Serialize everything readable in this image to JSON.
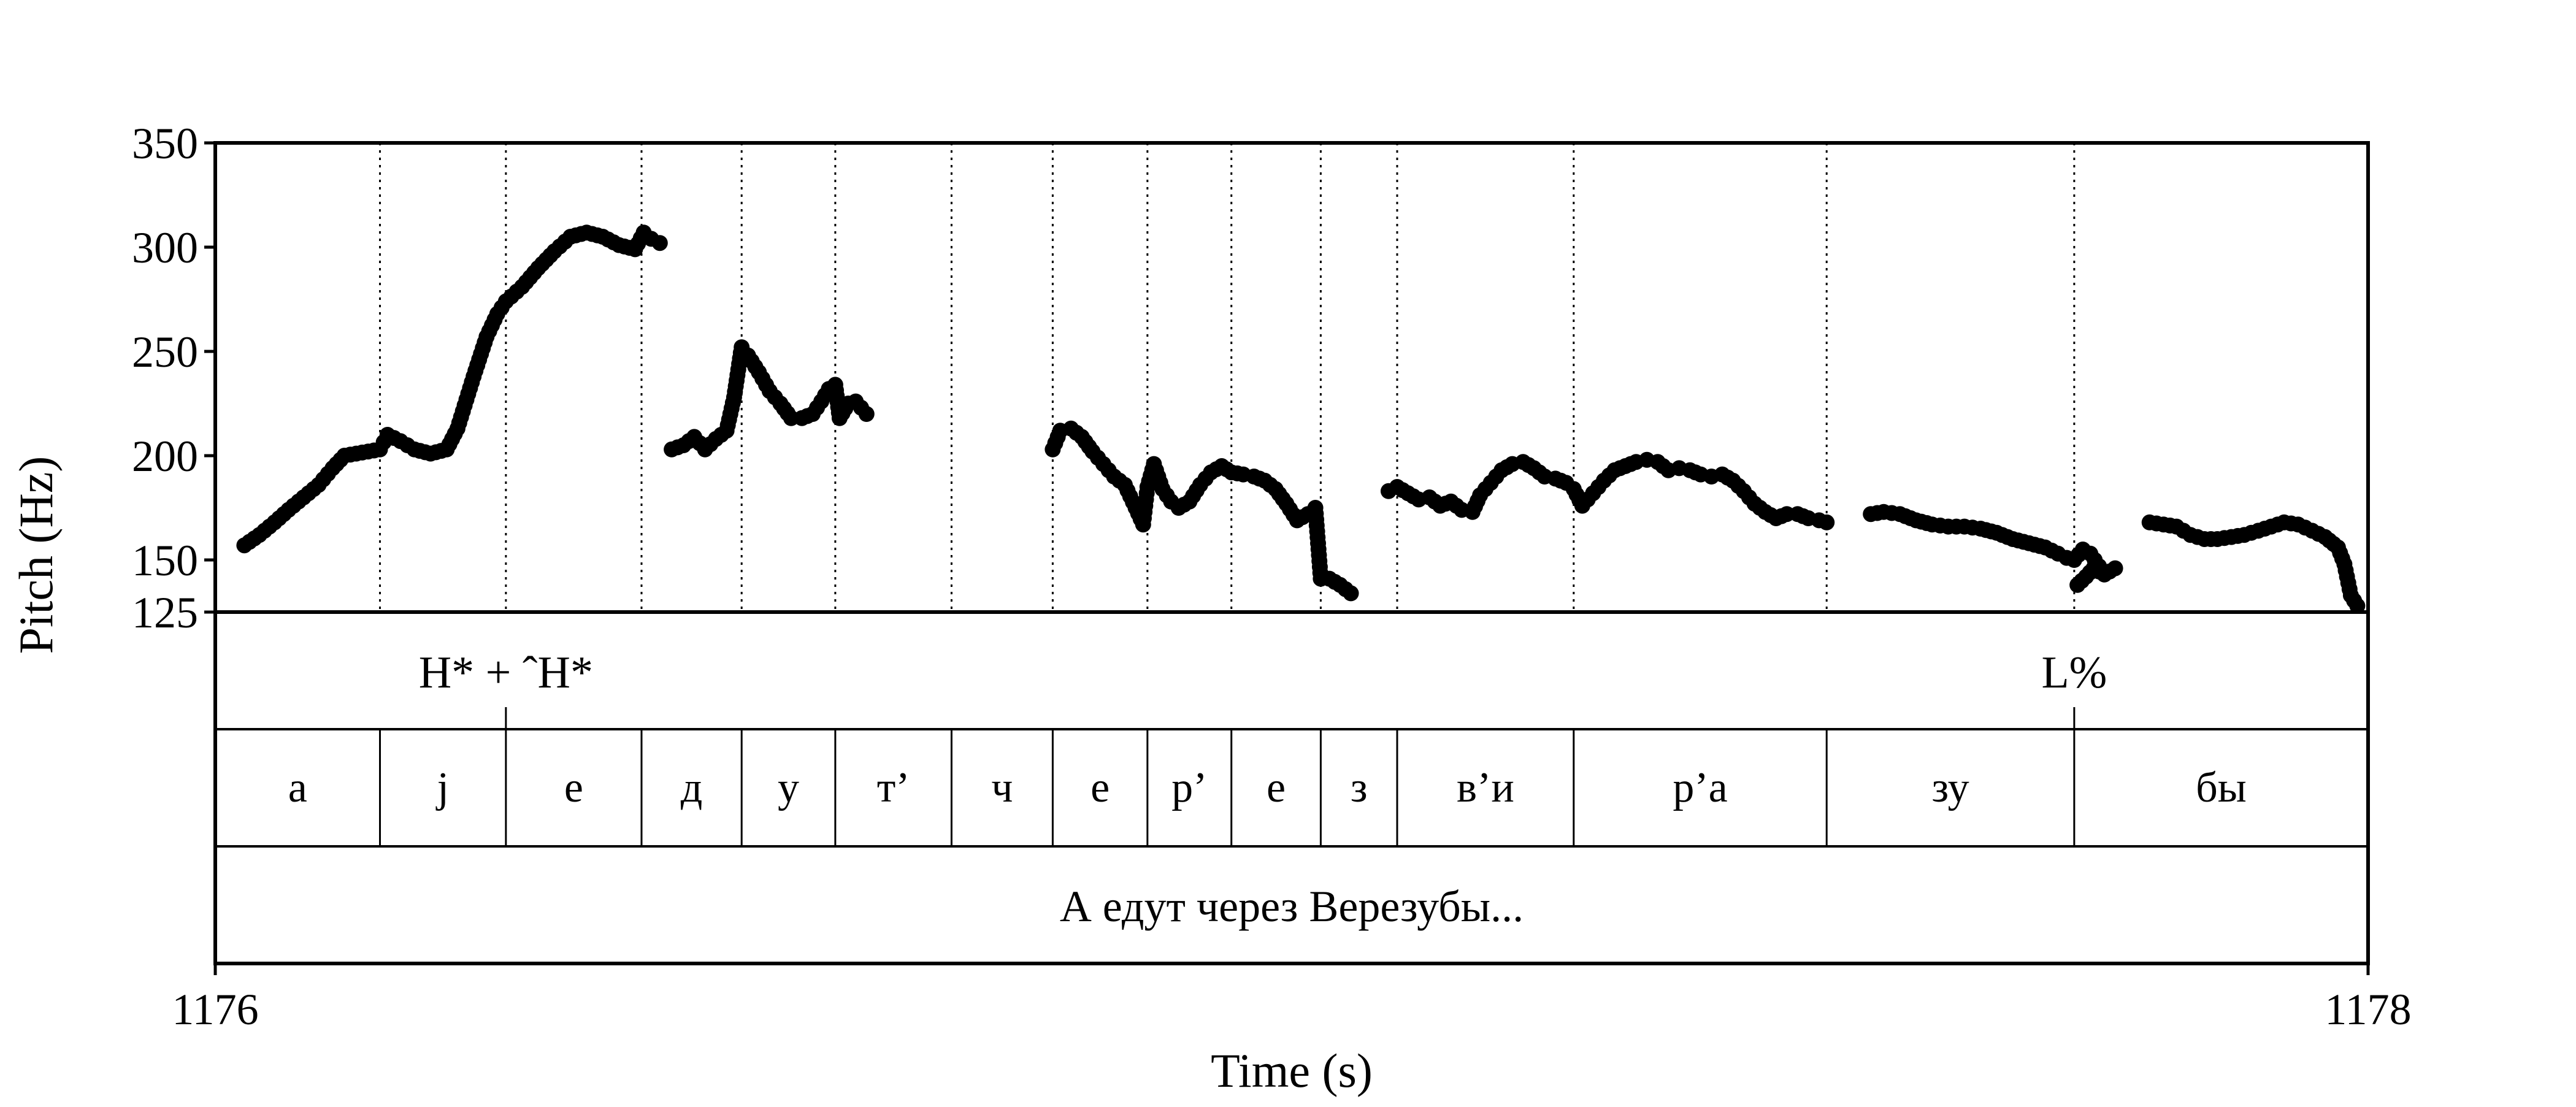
{
  "chart_data": {
    "type": "scatter",
    "title": "",
    "xlabel": "Time (s)",
    "ylabel": "Pitch (Hz)",
    "xlim": [
      1176,
      1178
    ],
    "ylim": [
      125,
      350
    ],
    "x_tick_labels": [
      "1176",
      "1178"
    ],
    "y_ticks": [
      125,
      150,
      200,
      250,
      300,
      350
    ],
    "y_tick_labels": [
      "125",
      "150",
      "200",
      "250",
      "300",
      "350"
    ],
    "boundaries": [
      1176.153,
      1176.27,
      1176.396,
      1176.489,
      1176.576,
      1176.684,
      1176.778,
      1176.866,
      1176.944,
      1177.027,
      1177.098,
      1177.262,
      1177.497,
      1177.727
    ],
    "tones": [
      {
        "label": "H* + ˆH*",
        "time": 1176.27
      },
      {
        "label": "L%",
        "time": 1177.727
      }
    ],
    "segments": [
      {
        "label": "а",
        "start": 1176.0,
        "end": 1176.153
      },
      {
        "label": "j",
        "start": 1176.153,
        "end": 1176.27
      },
      {
        "label": "е",
        "start": 1176.27,
        "end": 1176.396
      },
      {
        "label": "д",
        "start": 1176.396,
        "end": 1176.489
      },
      {
        "label": "у",
        "start": 1176.489,
        "end": 1176.576
      },
      {
        "label": "т’",
        "start": 1176.576,
        "end": 1176.684
      },
      {
        "label": "ч",
        "start": 1176.684,
        "end": 1176.778
      },
      {
        "label": "е",
        "start": 1176.778,
        "end": 1176.866
      },
      {
        "label": "р’",
        "start": 1176.866,
        "end": 1176.944
      },
      {
        "label": "е",
        "start": 1176.944,
        "end": 1177.027
      },
      {
        "label": "з",
        "start": 1177.027,
        "end": 1177.098
      },
      {
        "label": "в’и",
        "start": 1177.098,
        "end": 1177.262
      },
      {
        "label": "р’а",
        "start": 1177.262,
        "end": 1177.497
      },
      {
        "label": "зу",
        "start": 1177.497,
        "end": 1177.727
      },
      {
        "label": "бы",
        "start": 1177.727,
        "end": 1178.0
      }
    ],
    "sentence": "А едут через Верезубы...",
    "series": [
      {
        "x": [
          1176.027,
          1176.041,
          1176.055,
          1176.068,
          1176.082,
          1176.096,
          1176.109,
          1176.12,
          1176.131,
          1176.142,
          1176.153,
          1176.16,
          1176.172,
          1176.185,
          1176.2,
          1176.215,
          1176.225,
          1176.24,
          1176.252,
          1176.262,
          1176.27,
          1176.285,
          1176.3,
          1176.315,
          1176.33,
          1176.345,
          1176.36,
          1176.375,
          1176.39,
          1176.398,
          1176.405,
          1176.413
        ],
        "y": [
          157,
          162,
          168,
          174,
          180,
          186,
          194,
          200,
          201,
          202,
          203,
          210,
          207,
          203,
          201,
          203,
          213,
          238,
          257,
          268,
          274,
          281,
          290,
          298,
          305,
          307,
          305,
          301,
          299,
          307,
          304,
          302
        ]
      },
      {
        "x": [
          1176.424,
          1176.435,
          1176.445,
          1176.455,
          1176.465,
          1176.475,
          1176.482,
          1176.489,
          1176.495,
          1176.505,
          1176.515,
          1176.525,
          1176.535,
          1176.545,
          1176.555,
          1176.563,
          1176.57,
          1176.576,
          1176.58,
          1176.588,
          1176.595,
          1176.605
        ],
        "y": [
          203,
          205,
          209,
          203,
          208,
          212,
          228,
          252,
          248,
          240,
          231,
          225,
          218,
          218,
          220,
          226,
          232,
          234,
          218,
          225,
          226,
          220
        ]
      },
      {
        "x": [
          1176.778,
          1176.785,
          1176.795,
          1176.805,
          1176.815,
          1176.825,
          1176.835,
          1176.845,
          1176.855,
          1176.862,
          1176.866,
          1176.872,
          1176.88,
          1176.888,
          1176.895,
          1176.905,
          1176.915,
          1176.925,
          1176.935,
          1176.944,
          1176.955,
          1176.965,
          1176.975,
          1176.985,
          1176.995,
          1177.005,
          1177.015,
          1177.022,
          1177.027,
          1177.035,
          1177.045,
          1177.055
        ],
        "y": [
          203,
          212,
          213,
          209,
          202,
          196,
          190,
          186,
          175,
          167,
          185,
          196,
          184,
          178,
          175,
          178,
          186,
          192,
          195,
          192,
          191,
          190,
          188,
          184,
          177,
          169,
          172,
          175,
          141,
          141,
          138,
          134
        ]
      },
      {
        "x": [
          1177.09,
          1177.098,
          1177.108,
          1177.118,
          1177.128,
          1177.138,
          1177.148,
          1177.158,
          1177.168,
          1177.175,
          1177.185,
          1177.195,
          1177.205,
          1177.215,
          1177.225,
          1177.235,
          1177.245,
          1177.255,
          1177.262,
          1177.27,
          1177.28,
          1177.29,
          1177.3,
          1177.31,
          1177.32,
          1177.33,
          1177.34,
          1177.35,
          1177.36,
          1177.37,
          1177.38,
          1177.39,
          1177.4,
          1177.41,
          1177.42,
          1177.43,
          1177.44,
          1177.45,
          1177.46,
          1177.47,
          1177.48,
          1177.49,
          1177.497
        ],
        "y": [
          183,
          185,
          182,
          179,
          180,
          176,
          178,
          174,
          173,
          181,
          187,
          193,
          196,
          197,
          194,
          190,
          189,
          187,
          184,
          176,
          182,
          188,
          193,
          195,
          197,
          198,
          197,
          193,
          194,
          193,
          191,
          190,
          191,
          188,
          183,
          177,
          173,
          170,
          172,
          172,
          170,
          169,
          168
        ]
      },
      {
        "x": [
          1177.538,
          1177.55,
          1177.565,
          1177.58,
          1177.595,
          1177.61,
          1177.625,
          1177.64,
          1177.655,
          1177.67,
          1177.685,
          1177.7,
          1177.712,
          1177.72,
          1177.727,
          1177.735,
          1177.742,
          1177.75
        ],
        "y": [
          172,
          173,
          172,
          169,
          167,
          166,
          166,
          165,
          163,
          160,
          158,
          156,
          153,
          151,
          150,
          155,
          153,
          147
        ]
      },
      {
        "x": [
          1177.73,
          1177.738,
          1177.745,
          1177.755,
          1177.765
        ],
        "y": [
          138,
          142,
          146,
          143,
          146
        ]
      },
      {
        "x": [
          1177.797,
          1177.81,
          1177.822,
          1177.835,
          1177.848,
          1177.86,
          1177.873,
          1177.885,
          1177.898,
          1177.91,
          1177.922,
          1177.935,
          1177.948,
          1177.96,
          1177.972,
          1177.978,
          1177.984,
          1177.99
        ],
        "y": [
          168,
          167,
          166,
          162,
          160,
          160,
          161,
          162,
          164,
          166,
          168,
          167,
          164,
          161,
          156,
          148,
          133,
          128
        ]
      }
    ]
  }
}
